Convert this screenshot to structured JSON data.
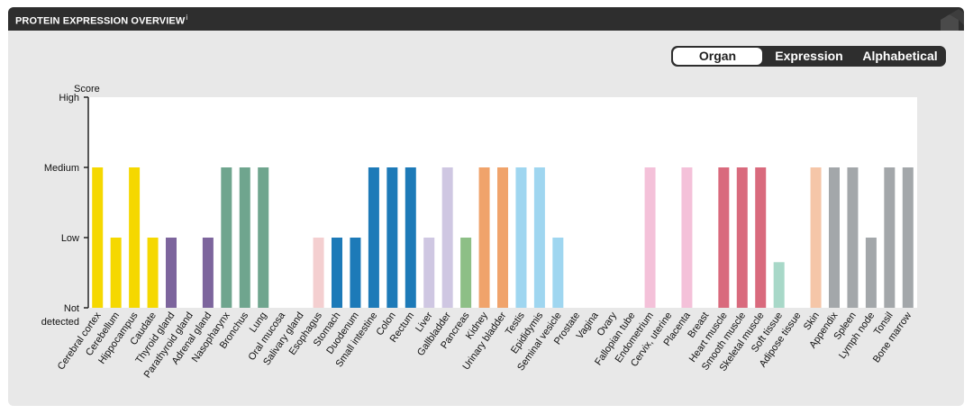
{
  "header": {
    "title": "PROTEIN EXPRESSION OVERVIEW",
    "info_mark": "i"
  },
  "tabs": [
    {
      "label": "Organ"
    },
    {
      "label": "Expression"
    },
    {
      "label": "Alphabetical"
    }
  ],
  "chart_data": {
    "type": "bar",
    "ylabel": "Score",
    "ytick_labels": [
      "High",
      "Medium",
      "Low",
      "Not detected"
    ],
    "yticks": [
      3,
      2,
      1,
      0
    ],
    "ylim": [
      0,
      3
    ],
    "grid": false,
    "categories": [
      "Cerebral cortex",
      "Cerebellum",
      "Hippocampus",
      "Caudate",
      "Thyroid gland",
      "Parathyroid gland",
      "Adrenal gland",
      "Nasopharynx",
      "Bronchus",
      "Lung",
      "Oral mucosa",
      "Salivary gland",
      "Esophagus",
      "Stomach",
      "Duodenum",
      "Small intestine",
      "Colon",
      "Rectum",
      "Liver",
      "Gallbladder",
      "Pancreas",
      "Kidney",
      "Urinary bladder",
      "Testis",
      "Epididymis",
      "Seminal vesicle",
      "Prostate",
      "Vagina",
      "Ovary",
      "Fallopian tube",
      "Endometrium",
      "Cervix, uterine",
      "Placenta",
      "Breast",
      "Heart muscle",
      "Smooth muscle",
      "Skeletal muscle",
      "Soft tissue",
      "Adipose tissue",
      "Skin",
      "Appendix",
      "Spleen",
      "Lymph node",
      "Tonsil",
      "Bone marrow"
    ],
    "values": [
      2,
      1,
      2,
      1,
      1,
      0,
      1,
      2,
      2,
      2,
      0,
      0,
      1,
      1,
      1,
      2,
      2,
      2,
      1,
      2,
      1,
      2,
      2,
      2,
      2,
      1,
      0,
      0,
      0,
      0,
      2,
      0,
      2,
      0,
      2,
      2,
      2,
      0.65,
      0,
      2,
      2,
      2,
      1,
      2,
      2
    ],
    "colors": [
      "#f5d800",
      "#f5d800",
      "#f5d800",
      "#f5d800",
      "#7d659d",
      "#7d659d",
      "#7d659d",
      "#6fa58e",
      "#6fa58e",
      "#6fa58e",
      "#f4cfd0",
      "#f4cfd0",
      "#f4cfd0",
      "#1d7ab8",
      "#1d7ab8",
      "#1d7ab8",
      "#1d7ab8",
      "#1d7ab8",
      "#cfc7e2",
      "#cfc7e2",
      "#8dbf86",
      "#f0a36b",
      "#f0a36b",
      "#9fd6f0",
      "#9fd6f0",
      "#9fd6f0",
      "#9fd6f0",
      "#f4c1d9",
      "#f4c1d9",
      "#f4c1d9",
      "#f4c1d9",
      "#f4c1d9",
      "#f4c1d9",
      "#f4c1d9",
      "#d96a7d",
      "#d96a7d",
      "#d96a7d",
      "#a8d8c8",
      "#f5c6a8",
      "#f5c6a8",
      "#a3a7aa",
      "#a3a7aa",
      "#a3a7aa",
      "#a3a7aa",
      "#a3a7aa"
    ]
  }
}
